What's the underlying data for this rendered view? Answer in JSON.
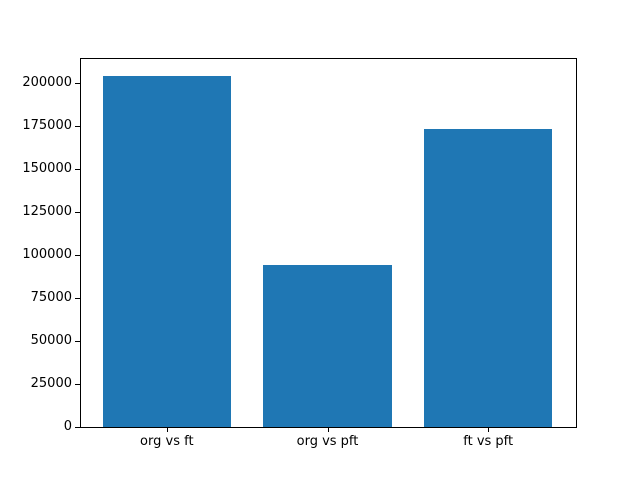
{
  "figure": {
    "background": "#ffffff"
  },
  "chart_data": {
    "type": "bar",
    "title": "",
    "xlabel": "",
    "ylabel": "",
    "categories": [
      "org vs ft",
      "org vs pft",
      "ft vs pft"
    ],
    "values": [
      204000,
      94000,
      173000
    ],
    "ylim": [
      0,
      214200
    ],
    "xlim": [
      -0.54,
      2.54
    ],
    "bar_width": 0.8,
    "ytick_step": 25000,
    "ytick_labels": [
      "0",
      "25000",
      "50000",
      "75000",
      "100000",
      "125000",
      "150000",
      "175000",
      "200000"
    ],
    "bar_color": "#1f77b4",
    "text_color": "#000000",
    "spine_color": "#000000",
    "grid": false,
    "legend_position": "none"
  }
}
